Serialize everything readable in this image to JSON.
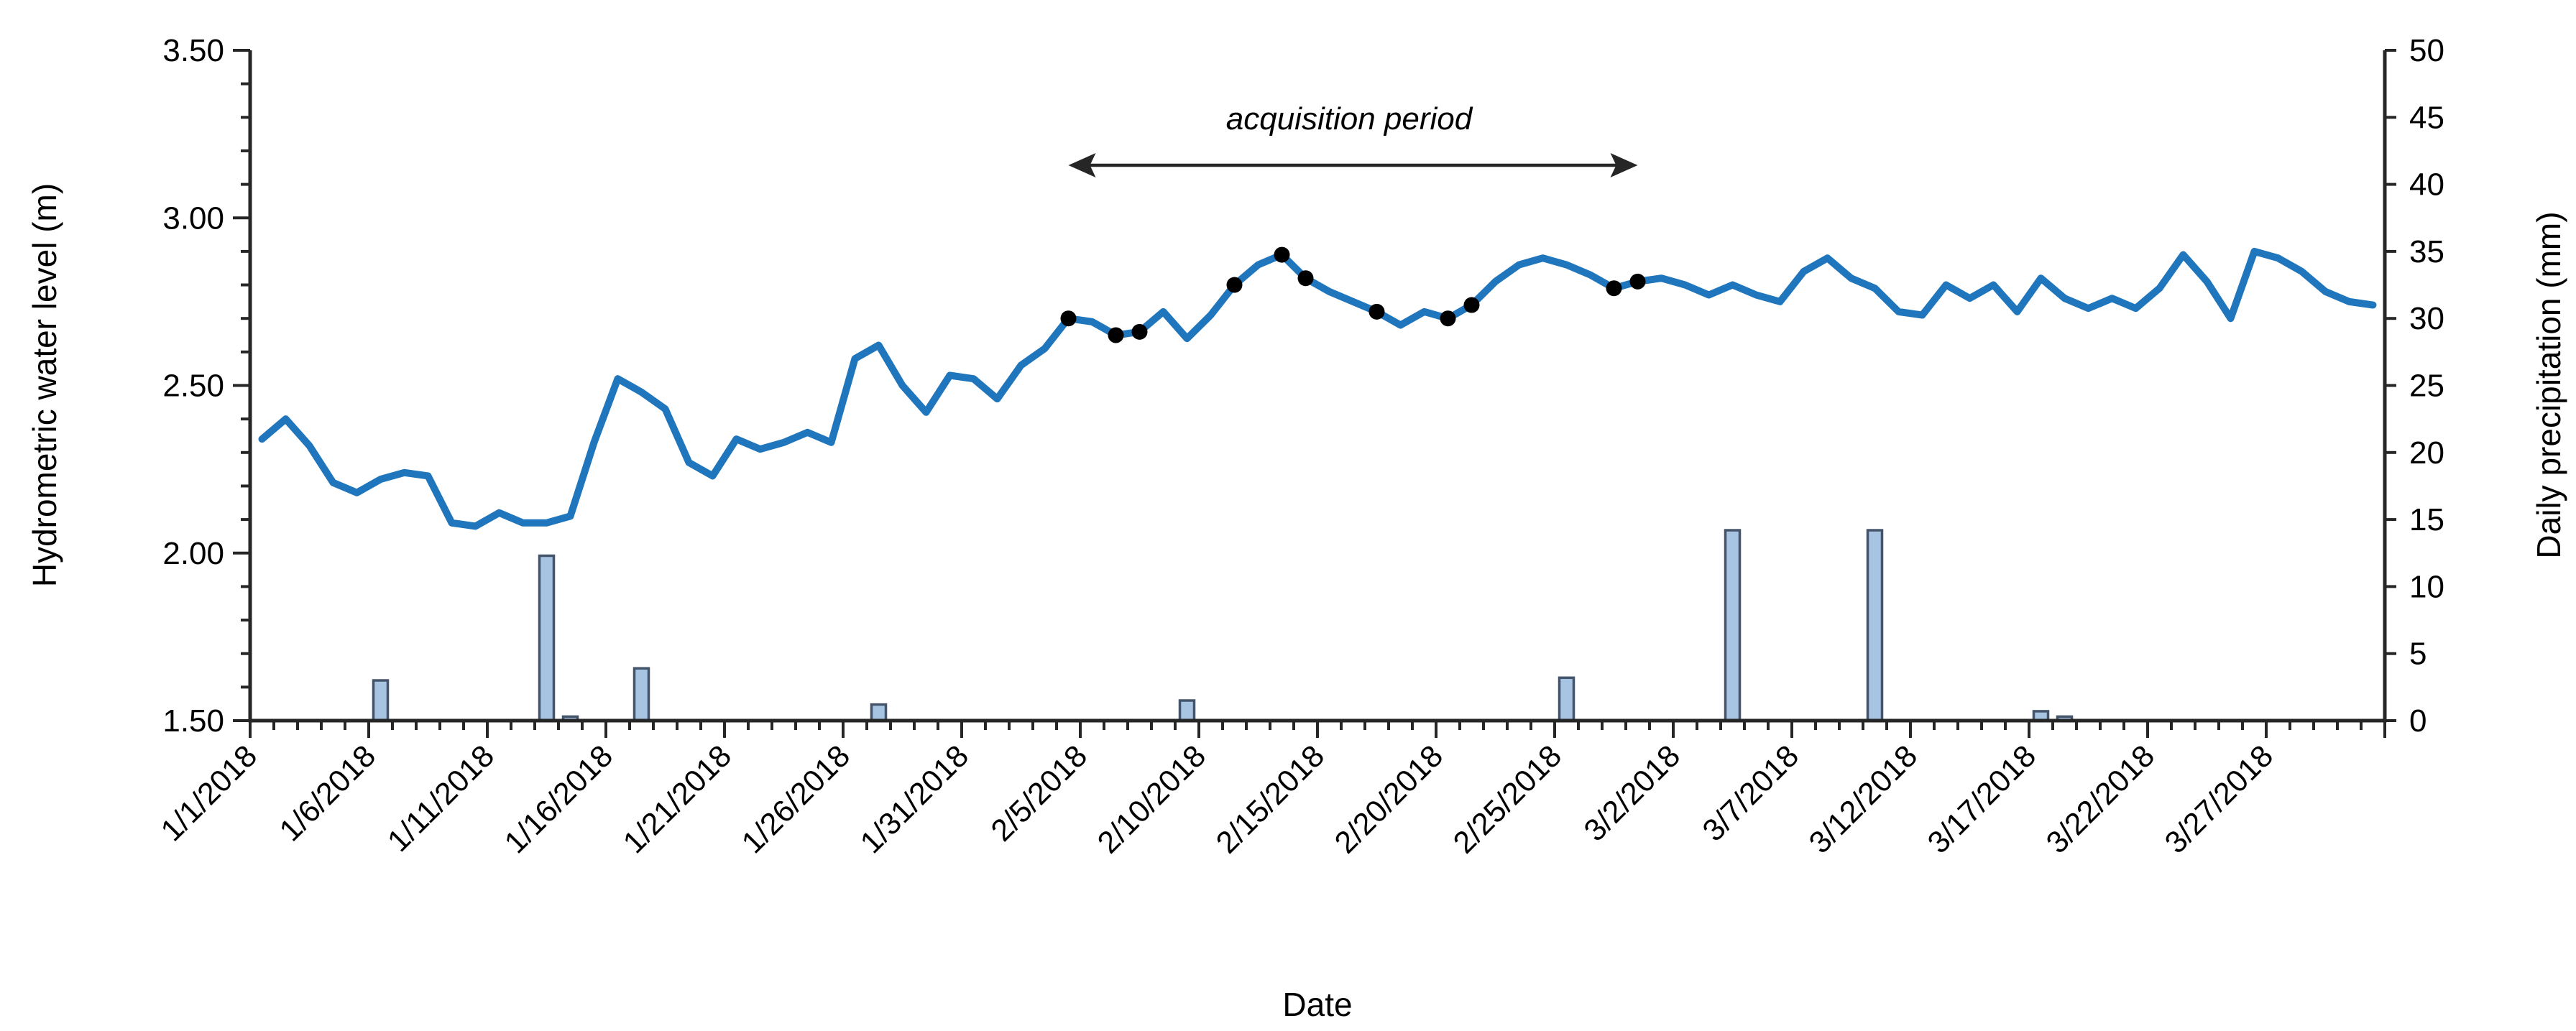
{
  "chart_data": {
    "type": "combo",
    "x_axis": {
      "label": "Date",
      "tick_label_every_days": 5
    },
    "left_axis": {
      "label": "Hydrometric water level (m)",
      "min": 1.5,
      "max": 3.5,
      "major_step": 0.5,
      "minor_step": 0.1
    },
    "right_axis": {
      "label": "Daily precipitation (mm)",
      "min": 0,
      "max": 50,
      "step": 5
    },
    "categories": [
      "1/1/2018",
      "1/2/2018",
      "1/3/2018",
      "1/4/2018",
      "1/5/2018",
      "1/6/2018",
      "1/7/2018",
      "1/8/2018",
      "1/9/2018",
      "1/10/2018",
      "1/11/2018",
      "1/12/2018",
      "1/13/2018",
      "1/14/2018",
      "1/15/2018",
      "1/16/2018",
      "1/17/2018",
      "1/18/2018",
      "1/19/2018",
      "1/20/2018",
      "1/21/2018",
      "1/22/2018",
      "1/23/2018",
      "1/24/2018",
      "1/25/2018",
      "1/26/2018",
      "1/27/2018",
      "1/28/2018",
      "1/29/2018",
      "1/30/2018",
      "1/31/2018",
      "2/1/2018",
      "2/2/2018",
      "2/3/2018",
      "2/4/2018",
      "2/5/2018",
      "2/6/2018",
      "2/7/2018",
      "2/8/2018",
      "2/9/2018",
      "2/10/2018",
      "2/11/2018",
      "2/12/2018",
      "2/13/2018",
      "2/14/2018",
      "2/15/2018",
      "2/16/2018",
      "2/17/2018",
      "2/18/2018",
      "2/19/2018",
      "2/20/2018",
      "2/21/2018",
      "2/22/2018",
      "2/23/2018",
      "2/24/2018",
      "2/25/2018",
      "2/26/2018",
      "2/27/2018",
      "2/28/2018",
      "3/1/2018",
      "3/2/2018",
      "3/3/2018",
      "3/4/2018",
      "3/5/2018",
      "3/6/2018",
      "3/7/2018",
      "3/8/2018",
      "3/9/2018",
      "3/10/2018",
      "3/11/2018",
      "3/12/2018",
      "3/13/2018",
      "3/14/2018",
      "3/15/2018",
      "3/16/2018",
      "3/17/2018",
      "3/18/2018",
      "3/19/2018",
      "3/20/2018",
      "3/21/2018",
      "3/22/2018",
      "3/23/2018",
      "3/24/2018",
      "3/25/2018",
      "3/26/2018",
      "3/27/2018",
      "3/28/2018",
      "3/29/2018",
      "3/30/2018",
      "3/31/2018"
    ],
    "series": [
      {
        "name": "hydrometric-water-level",
        "type": "line",
        "axis": "left",
        "color": "#1f76bc",
        "values": [
          2.34,
          2.4,
          2.32,
          2.21,
          2.18,
          2.22,
          2.24,
          2.23,
          2.09,
          2.08,
          2.12,
          2.09,
          2.09,
          2.11,
          2.33,
          2.52,
          2.48,
          2.43,
          2.27,
          2.23,
          2.34,
          2.31,
          2.33,
          2.36,
          2.33,
          2.58,
          2.62,
          2.5,
          2.42,
          2.53,
          2.52,
          2.46,
          2.56,
          2.61,
          2.7,
          2.69,
          2.65,
          2.66,
          2.72,
          2.64,
          2.71,
          2.8,
          2.86,
          2.89,
          2.82,
          2.78,
          2.75,
          2.72,
          2.68,
          2.72,
          2.7,
          2.74,
          2.81,
          2.86,
          2.88,
          2.86,
          2.83,
          2.79,
          2.81,
          2.82,
          2.8,
          2.77,
          2.8,
          2.77,
          2.75,
          2.84,
          2.88,
          2.82,
          2.79,
          2.72,
          2.71,
          2.8,
          2.76,
          2.8,
          2.72,
          2.82,
          2.76,
          2.73,
          2.76,
          2.73,
          2.79,
          2.89,
          2.81,
          2.7,
          2.9,
          2.88,
          2.84,
          2.78,
          2.75,
          2.74
        ]
      },
      {
        "name": "daily-precipitation",
        "type": "bar",
        "axis": "right",
        "fill": "#a7c4e2",
        "stroke": "#44546a",
        "values_by_date": {
          "1/6/2018": 3.0,
          "1/13/2018": 12.3,
          "1/14/2018": 0.3,
          "1/17/2018": 3.9,
          "1/27/2018": 1.2,
          "2/9/2018": 1.5,
          "2/25/2018": 3.2,
          "3/4/2018": 14.2,
          "3/10/2018": 14.2,
          "3/17/2018": 0.7,
          "3/18/2018": 0.3
        }
      }
    ],
    "acquisition_markers": {
      "name": "SAR-acquisition-dates",
      "color": "#000000",
      "dates": [
        "2/4/2018",
        "2/6/2018",
        "2/7/2018",
        "2/11/2018",
        "2/13/2018",
        "2/14/2018",
        "2/17/2018",
        "2/20/2018",
        "2/21/2018",
        "2/27/2018",
        "2/28/2018"
      ]
    },
    "annotation": {
      "label": "acquisition period",
      "start_date": "2/4/2018",
      "end_date": "2/28/2018",
      "arrow_color": "#262626"
    },
    "axis_color": "#262626"
  }
}
